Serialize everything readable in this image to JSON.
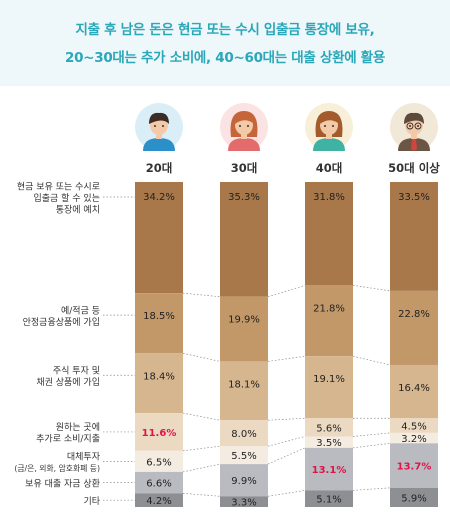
{
  "header": {
    "line1": "지출 후 남은 돈은 현금 또는 수시 입출금 통장에 보유,",
    "line2": "20~30대는 추가 소비에, 40~60대는 대출 상환에 활용"
  },
  "icons": [
    "avatar-man-20s-icon",
    "avatar-woman-30s-icon",
    "avatar-woman-40s-icon",
    "avatar-man-50s-icon"
  ],
  "colors": {
    "title": "#2aa7b8",
    "highlight": "#e0134a",
    "segments": [
      "#a9784a",
      "#c39868",
      "#d6b68e",
      "#ebd9c2",
      "#f4ece1",
      "#babbc1",
      "#8e8f93"
    ]
  },
  "chart_data": {
    "type": "bar",
    "stacked": true,
    "categories": [
      "20대",
      "30대",
      "40대",
      "50대 이상"
    ],
    "series": [
      {
        "name": "현금 보유 또는 수시로 입출금 할 수 있는 통장에 예치",
        "label_lines": [
          "현금 보유 또는 수시로",
          "입출금 할 수 있는",
          "통장에 예치"
        ],
        "values": [
          34.2,
          35.3,
          31.8,
          33.5
        ]
      },
      {
        "name": "예/적금 등 안정금융상품에 가입",
        "label_lines": [
          "예/적금 등",
          "안정금융상품에 가입"
        ],
        "values": [
          18.5,
          19.9,
          21.8,
          22.8
        ]
      },
      {
        "name": "주식 투자 및 채권 상품에 가입",
        "label_lines": [
          "주식 투자 및",
          "채권 상품에 가입"
        ],
        "values": [
          18.4,
          18.1,
          19.1,
          16.4
        ]
      },
      {
        "name": "원하는 곳에 추가로 소비/지출",
        "label_lines": [
          "원하는 곳에",
          "추가로 소비/지출"
        ],
        "values": [
          11.6,
          8.0,
          5.6,
          4.5
        ]
      },
      {
        "name": "대체투자 (금/은, 외화, 암호화폐 등)",
        "label_lines": [
          "대체투자",
          "(금/은, 외화, 암호화폐 등)"
        ],
        "values": [
          6.5,
          5.5,
          3.5,
          3.2
        ]
      },
      {
        "name": "보유 대출 자금 상환",
        "label_lines": [
          "보유 대출 자금 상환"
        ],
        "values": [
          6.6,
          9.9,
          13.1,
          13.7
        ]
      },
      {
        "name": "기타",
        "label_lines": [
          "기타"
        ],
        "values": [
          4.2,
          3.3,
          5.1,
          5.9
        ]
      }
    ],
    "value_labels": [
      [
        "34.2%",
        "35.3%",
        "31.8%",
        "33.5%"
      ],
      [
        "18.5%",
        "19.9%",
        "21.8%",
        "22.8%"
      ],
      [
        "18.4%",
        "18.1%",
        "19.1%",
        "16.4%"
      ],
      [
        "11.6%",
        "8.0%",
        "5.6%",
        "4.5%"
      ],
      [
        "6.5%",
        "5.5%",
        "3.5%",
        "3.2%"
      ],
      [
        "6.6%",
        "9.9%",
        "13.1%",
        "13.7%"
      ],
      [
        "4.2%",
        "3.3%",
        "5.1%",
        "5.9%"
      ]
    ],
    "highlighted": [
      [
        3,
        0
      ],
      [
        5,
        2
      ],
      [
        5,
        3
      ]
    ],
    "ylim": [
      0,
      100
    ]
  }
}
